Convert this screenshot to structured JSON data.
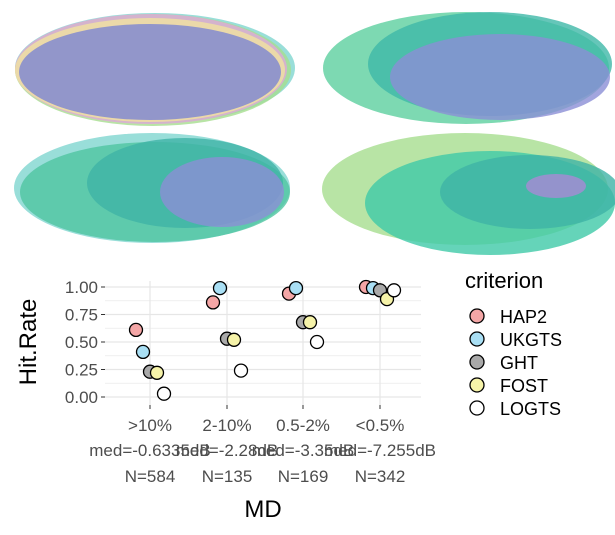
{
  "chart_data": {
    "type": "scatter",
    "xlabel": "MD",
    "ylabel": "Hit.Rate",
    "ylim": [
      0,
      1
    ],
    "y_ticks": [
      "0.00",
      "0.25",
      "0.50",
      "0.75",
      "1.00"
    ],
    "grid": true,
    "legend_position": "right",
    "legend_title": "criterion",
    "categories": [
      {
        "label": ">10%",
        "median": "med=-0.6335dB",
        "n": "N=584"
      },
      {
        "label": "2-10%",
        "median": "med=-2.28dB",
        "n": "N=135"
      },
      {
        "label": "0.5-2%",
        "median": "med=-3.35dB",
        "n": "N=169"
      },
      {
        "label": "<0.5%",
        "median": "med=-7.255dB",
        "n": "N=342"
      }
    ],
    "series": [
      {
        "name": "HAP2",
        "color": "#f4a6a6",
        "values": [
          0.61,
          0.86,
          0.94,
          1.0
        ]
      },
      {
        "name": "UKGTS",
        "color": "#a9dff4",
        "values": [
          0.41,
          0.99,
          0.99,
          0.99
        ]
      },
      {
        "name": "GHT",
        "color": "#a9a9a9",
        "values": [
          0.23,
          0.53,
          0.68,
          0.97
        ]
      },
      {
        "name": "FOST",
        "color": "#f6f3a9",
        "values": [
          0.22,
          0.52,
          0.68,
          0.89
        ]
      },
      {
        "name": "LOGTS",
        "color": "#ffffff",
        "values": [
          0.03,
          0.24,
          0.5,
          0.97
        ]
      }
    ]
  },
  "venn_panels": [
    {
      "note": "top-left",
      "ellipses": [
        {
          "color": "#7fd6cf",
          "size": 0.98
        },
        {
          "color": "#a6dd8f",
          "size": 0.96
        },
        {
          "color": "#e0a8d8",
          "size": 0.95
        },
        {
          "color": "#f0e2a0",
          "size": 0.94
        },
        {
          "color": "#7c84d2",
          "size": 0.93
        }
      ]
    },
    {
      "note": "top-right",
      "ellipses": [
        {
          "color": "#5ccf9f",
          "size": 1.0
        },
        {
          "color": "#3fb8a8",
          "size": 0.82
        },
        {
          "color": "#8b8fd6",
          "size": 0.66
        }
      ]
    },
    {
      "note": "bottom-left",
      "ellipses": [
        {
          "color": "#7fd6cf",
          "size": 1.0
        },
        {
          "color": "#4fc4a0",
          "size": 0.95
        },
        {
          "color": "#3fb3a6",
          "size": 0.6
        },
        {
          "color": "#8b8fd6",
          "size": 0.42
        }
      ]
    },
    {
      "note": "bottom-right",
      "ellipses": [
        {
          "color": "#a6dd8f",
          "size": 1.0
        },
        {
          "color": "#3fc9a8",
          "size": 0.8
        },
        {
          "color": "#3fb3a6",
          "size": 0.5
        },
        {
          "color": "#a98ad6",
          "size": 0.2
        }
      ]
    }
  ]
}
